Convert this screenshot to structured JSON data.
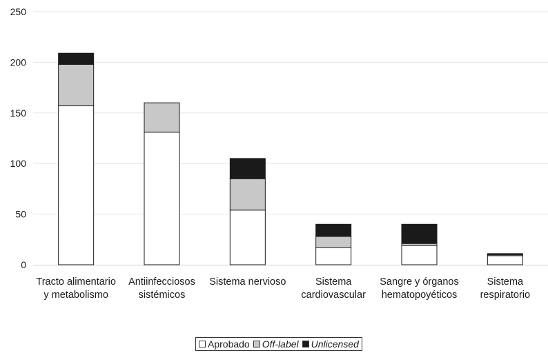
{
  "chart_data": {
    "type": "bar",
    "stacked": true,
    "categories": [
      [
        "Tracto alimentario",
        "y metabolismo"
      ],
      [
        "Antiinfecciosos",
        "sistémicos"
      ],
      [
        "Sistema nervioso"
      ],
      [
        "Sistema",
        "cardiovascular"
      ],
      [
        "Sangre y órganos",
        "hematopoyéticos"
      ],
      [
        "Sistema",
        "respiratorio"
      ]
    ],
    "series": [
      {
        "name": "Aprobado",
        "values": [
          157,
          131,
          54,
          17,
          19,
          9
        ],
        "color": "#ffffff",
        "italic": false
      },
      {
        "name": "Off-label",
        "values": [
          41,
          29,
          31,
          11,
          2,
          1
        ],
        "color": "#c8c8c8",
        "italic": true
      },
      {
        "name": "Unlicensed",
        "values": [
          11,
          0,
          20,
          12,
          19,
          1
        ],
        "color": "#1a1a1a",
        "italic": true
      }
    ],
    "yticks": [
      0,
      50,
      100,
      150,
      200,
      250
    ],
    "ylim": [
      0,
      250
    ],
    "grid": true,
    "legend": "bottom-center"
  }
}
